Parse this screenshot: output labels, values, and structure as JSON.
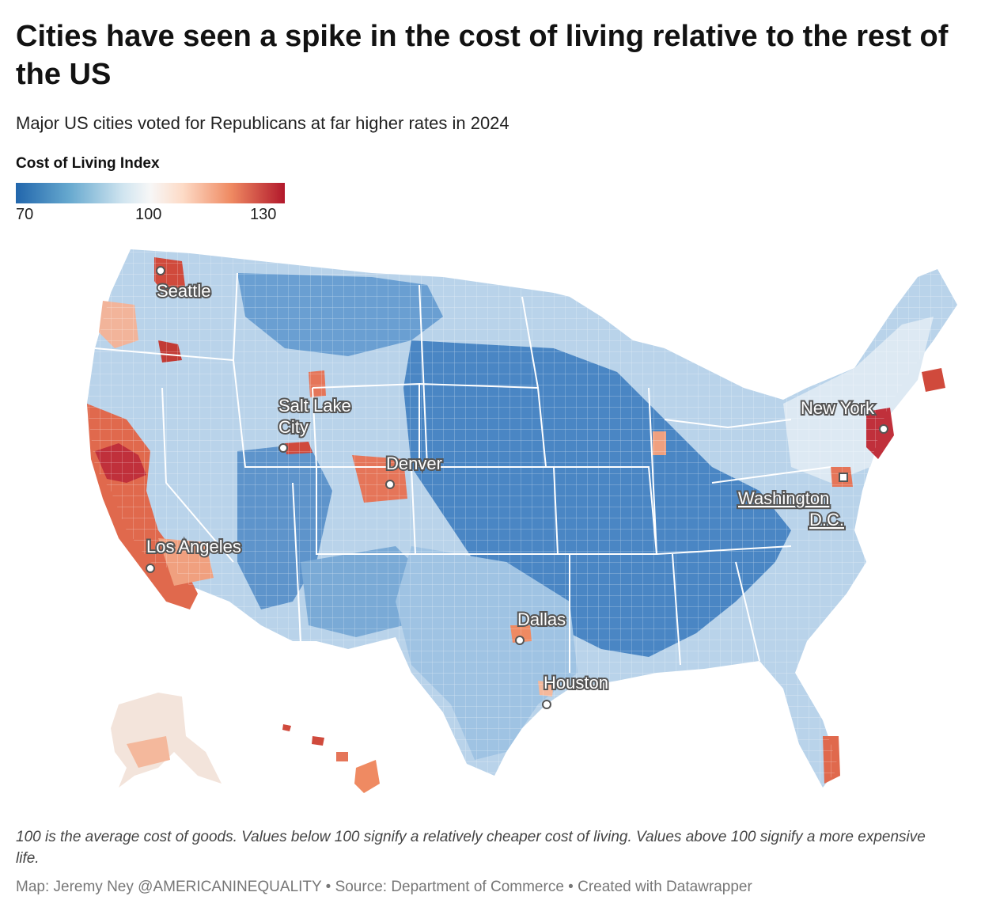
{
  "header": {
    "title": "Cities have seen a spike in the cost of living relative to the rest of the US",
    "subtitle": "Major US cities voted for Republicans at far higher rates in 2024"
  },
  "legend": {
    "title": "Cost of Living Index",
    "min_label": "70",
    "mid_label": "100",
    "max_label": "130",
    "min": 70,
    "mid": 100,
    "max": 130,
    "colors": [
      "#2166ac",
      "#67a9cf",
      "#d1e5f0",
      "#f7f7f7",
      "#fddbc7",
      "#ef8a62",
      "#b2182b"
    ]
  },
  "map": {
    "region": "United States counties",
    "cities": [
      {
        "name": "Seattle",
        "line1": "Seattle",
        "line2": ""
      },
      {
        "name": "Salt Lake City",
        "line1": "Salt Lake",
        "line2": "City"
      },
      {
        "name": "Denver",
        "line1": "Denver",
        "line2": ""
      },
      {
        "name": "Los Angeles",
        "line1": "Los Angeles",
        "line2": ""
      },
      {
        "name": "Dallas",
        "line1": "Dallas",
        "line2": ""
      },
      {
        "name": "Houston",
        "line1": "Houston",
        "line2": ""
      },
      {
        "name": "New York",
        "line1": "New York",
        "line2": ""
      },
      {
        "name": "Washington D.C.",
        "line1": "Washington",
        "line2": "D.C."
      }
    ]
  },
  "notes": "100 is the average cost of goods. Values below 100 signify a relatively cheaper cost of living. Values above 100 signify a more expensive life.",
  "footer": "Map: Jeremy Ney @AMERICANINEQUALITY • Source: Department of Commerce • Created with Datawrapper"
}
